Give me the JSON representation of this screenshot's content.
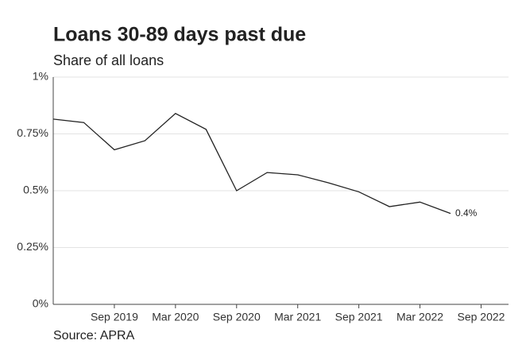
{
  "chart_data": {
    "type": "line",
    "title": "Loans 30-89 days past due",
    "subtitle": "Share of all loans",
    "source": "Source: APRA",
    "x": [
      "Mar 2019",
      "Jun 2019",
      "Sep 2019",
      "Dec 2019",
      "Mar 2020",
      "Jun 2020",
      "Sep 2020",
      "Dec 2020",
      "Mar 2021",
      "Jun 2021",
      "Sep 2021",
      "Dec 2021",
      "Mar 2022",
      "Jun 2022"
    ],
    "values": [
      0.815,
      0.8,
      0.68,
      0.72,
      0.84,
      0.77,
      0.5,
      0.58,
      0.57,
      0.535,
      0.495,
      0.43,
      0.45,
      0.4
    ],
    "value_labels": [
      null,
      null,
      null,
      null,
      null,
      null,
      null,
      null,
      null,
      null,
      null,
      null,
      null,
      "0.4%"
    ],
    "color": "#222222",
    "xticks": [
      "Sep 2019",
      "Mar 2020",
      "Sep 2020",
      "Mar 2021",
      "Sep 2021",
      "Mar 2022",
      "Sep 2022"
    ],
    "ylim": [
      0,
      1
    ],
    "yticks": [
      {
        "value": 0,
        "label": "0%"
      },
      {
        "value": 0.25,
        "label": "0.25%"
      },
      {
        "value": 0.5,
        "label": "0.5%"
      },
      {
        "value": 0.75,
        "label": "0.75%"
      },
      {
        "value": 1,
        "label": "1%"
      }
    ],
    "grid": true
  }
}
